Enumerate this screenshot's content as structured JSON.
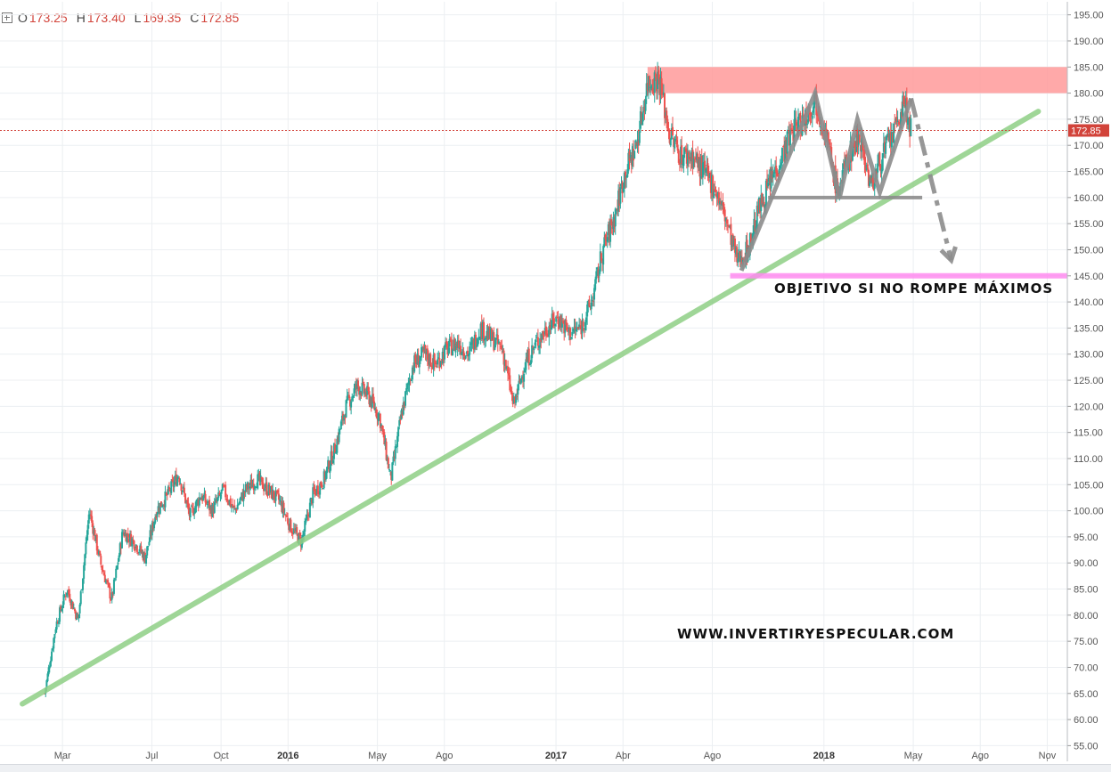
{
  "ohlc": {
    "open_label": "O",
    "open": "173.25",
    "high_label": "H",
    "high": "173.40",
    "low_label": "L",
    "low": "169.35",
    "close_label": "C",
    "close": "172.85"
  },
  "colors": {
    "bull": "#26a69a",
    "bear": "#ef5350",
    "trendline": "#8fcf86",
    "resistance_zone": "#ff9a9a",
    "target_line": "#ff8cf0",
    "pattern": "#8c8c8c",
    "last_price": "#d2433a",
    "grid": "#eceff2"
  },
  "chart_data": {
    "type": "candlestick",
    "y_axis": {
      "ticks": [
        "55.00",
        "60.00",
        "65.00",
        "70.00",
        "75.00",
        "80.00",
        "85.00",
        "90.00",
        "95.00",
        "100.00",
        "105.00",
        "110.00",
        "115.00",
        "120.00",
        "125.00",
        "130.00",
        "135.00",
        "140.00",
        "145.00",
        "150.00",
        "155.00",
        "160.00",
        "165.00",
        "170.00",
        "175.00",
        "180.00",
        "185.00",
        "190.00",
        "195.00"
      ],
      "range": [
        52,
        197.5
      ],
      "last_price": 172.85,
      "last_price_label": "172.85"
    },
    "x_axis": {
      "ticks": [
        {
          "label": "Mar",
          "t": 0.8,
          "bold": false
        },
        {
          "label": "Jul",
          "t": 4.8,
          "bold": false
        },
        {
          "label": "Oct",
          "t": 7.9,
          "bold": false
        },
        {
          "label": "2016",
          "t": 10.9,
          "bold": true
        },
        {
          "label": "May",
          "t": 14.9,
          "bold": false
        },
        {
          "label": "Ago",
          "t": 17.9,
          "bold": false
        },
        {
          "label": "2017",
          "t": 22.9,
          "bold": true
        },
        {
          "label": "Abr",
          "t": 25.9,
          "bold": false
        },
        {
          "label": "Ago",
          "t": 29.9,
          "bold": false
        },
        {
          "label": "2018",
          "t": 34.9,
          "bold": true
        },
        {
          "label": "May",
          "t": 38.9,
          "bold": false
        },
        {
          "label": "Ago",
          "t": 41.9,
          "bold": false
        },
        {
          "label": "Nov",
          "t": 44.9,
          "bold": false
        }
      ],
      "range": [
        -2.0,
        45.8
      ]
    },
    "series": [
      {
        "name": "",
        "points": [
          [
            0,
            65
          ],
          [
            0.5,
            78
          ],
          [
            1,
            85
          ],
          [
            1.5,
            79
          ],
          [
            2,
            100
          ],
          [
            2.5,
            90
          ],
          [
            3,
            83
          ],
          [
            3.5,
            96
          ],
          [
            4,
            94
          ],
          [
            4.5,
            91
          ],
          [
            5,
            100
          ],
          [
            5.5,
            103
          ],
          [
            6,
            107
          ],
          [
            6.5,
            99
          ],
          [
            7,
            103
          ],
          [
            7.5,
            100
          ],
          [
            8,
            104
          ],
          [
            8.5,
            100
          ],
          [
            9,
            104
          ],
          [
            9.5,
            106
          ],
          [
            10,
            104
          ],
          [
            10.5,
            102
          ],
          [
            11,
            97
          ],
          [
            11.5,
            94
          ],
          [
            12,
            103
          ],
          [
            12.5,
            106
          ],
          [
            13,
            112
          ],
          [
            13.5,
            120
          ],
          [
            14,
            124
          ],
          [
            14.5,
            122
          ],
          [
            15,
            118
          ],
          [
            15.5,
            106
          ],
          [
            16,
            119
          ],
          [
            16.5,
            128
          ],
          [
            17,
            130
          ],
          [
            17.5,
            128
          ],
          [
            18,
            131
          ],
          [
            18.5,
            132
          ],
          [
            19,
            130
          ],
          [
            19.5,
            135
          ],
          [
            20,
            133
          ],
          [
            20.5,
            131
          ],
          [
            21,
            120
          ],
          [
            21.5,
            128
          ],
          [
            22,
            132
          ],
          [
            22.5,
            135
          ],
          [
            23,
            137
          ],
          [
            23.5,
            134
          ],
          [
            24,
            135
          ],
          [
            24.5,
            140
          ],
          [
            25,
            150
          ],
          [
            25.5,
            156
          ],
          [
            26,
            165
          ],
          [
            26.5,
            170
          ],
          [
            27,
            182
          ],
          [
            27.5,
            183
          ],
          [
            28,
            172
          ],
          [
            28.5,
            168
          ],
          [
            29,
            168
          ],
          [
            29.5,
            165
          ],
          [
            30,
            162
          ],
          [
            30.5,
            156
          ],
          [
            31,
            148
          ],
          [
            31.5,
            150
          ],
          [
            32,
            158
          ],
          [
            32.5,
            163
          ],
          [
            33,
            168
          ],
          [
            33.5,
            173
          ],
          [
            34,
            175
          ],
          [
            34.5,
            179
          ],
          [
            35,
            172
          ],
          [
            35.5,
            161
          ],
          [
            36,
            168
          ],
          [
            36.5,
            172
          ],
          [
            37,
            162
          ],
          [
            37.5,
            168
          ],
          [
            38,
            172
          ],
          [
            38.5,
            178
          ],
          [
            38.8,
            172.85
          ]
        ]
      }
    ],
    "annotations": {
      "objective_text": "OBJETIVO SI NO ROMPE MÁXIMOS",
      "website_text": "WWW.INVERTIRYESPECULAR.COM",
      "trendline": {
        "from": [
          -1.0,
          63
        ],
        "to": [
          44.5,
          176.5
        ]
      },
      "resistance_zone": {
        "t_from": 27.0,
        "t_to": 45.8,
        "y_low": 180,
        "y_high": 185
      },
      "support_line": {
        "t_from": 32.4,
        "t_to": 39.3,
        "y": 160
      },
      "target_line": {
        "t_from": 30.7,
        "t_to": 45.8,
        "y": 145
      },
      "pattern_path": [
        [
          31.2,
          146
        ],
        [
          34.5,
          180
        ],
        [
          35.6,
          160
        ],
        [
          36.4,
          175
        ],
        [
          37.4,
          161
        ],
        [
          38.8,
          179
        ]
      ],
      "projection_path": [
        [
          38.8,
          179
        ],
        [
          40.6,
          148
        ]
      ]
    }
  }
}
